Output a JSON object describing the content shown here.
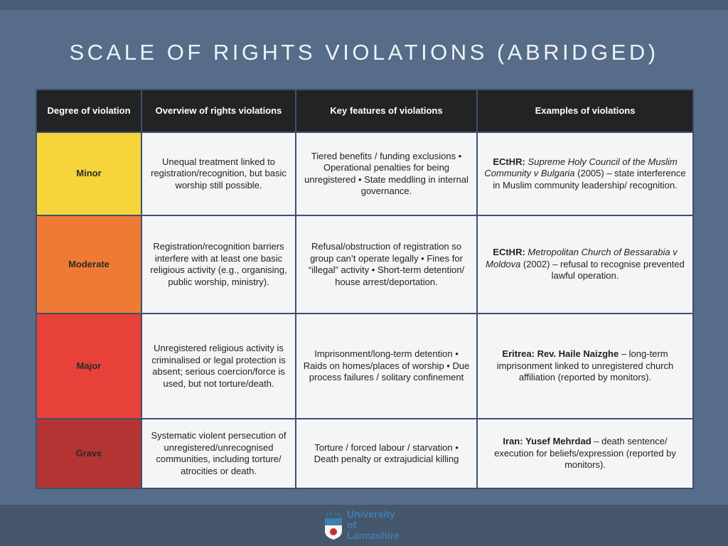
{
  "title": "SCALE OF RIGHTS VIOLATIONS (ABRIDGED)",
  "headers": [
    "Degree of violation",
    "Overview of rights violations",
    "Key features of violations",
    "Examples of violations"
  ],
  "rows": [
    {
      "degree": "Minor",
      "color": "#f6d53b",
      "overview": "Unequal treatment linked to registration/recognition, but basic worship still possible.",
      "features": "Tiered benefits / funding exclusions • Operational penalties for being unregistered • State meddling in internal governance.",
      "ex_bold": "ECtHR:",
      "ex_italic": "Supreme Holy Council of the Muslim Community v Bulgaria",
      "ex_bold2": "",
      "ex_rest": " (2005) – state interference in Muslim community leadership/ recognition."
    },
    {
      "degree": "Moderate",
      "color": "#f07a35",
      "overview": "Registration/recognition barriers interfere with at least one basic religious activity (e.g., organising, public worship, ministry).",
      "features": "Refusal/obstruction of registration so group can’t operate legally • Fines for “illegal” activity • Short-term detention/ house arrest/deportation.",
      "ex_bold": "ECtHR:",
      "ex_italic": "Metropolitan Church of Bessarabia v Moldova",
      "ex_bold2": "",
      "ex_rest": " (2002) – refusal to recognise prevented lawful operation."
    },
    {
      "degree": "Major",
      "color": "#e8413a",
      "overview": "Unregistered religious activity is criminalised or legal protection is absent; serious coercion/force is used, but not torture/death.",
      "features": "Imprisonment/long-term detention • Raids on homes/places of worship • Due process failures / solitary confinement",
      "ex_bold": "Eritrea:",
      "ex_italic": "",
      "ex_bold2": " Rev. Haile Naizghe",
      "ex_rest": " – long-term imprisonment linked to unregistered church affiliation (reported by monitors)."
    },
    {
      "degree": "Grave",
      "color": "#b43434",
      "overview": "Systematic violent persecution of unregistered/unrecognised communities, including torture/ atrocities or death.",
      "features": "Torture / forced labour / starvation • Death penalty or extrajudicial killing",
      "ex_bold": "Iran:",
      "ex_italic": "",
      "ex_bold2": " Yusef Mehrdad",
      "ex_rest": " – death sentence/ execution for beliefs/expression (reported by monitors)."
    }
  ],
  "footer": {
    "logo_text": "University of Lancashire",
    "logo_year": "1828"
  }
}
